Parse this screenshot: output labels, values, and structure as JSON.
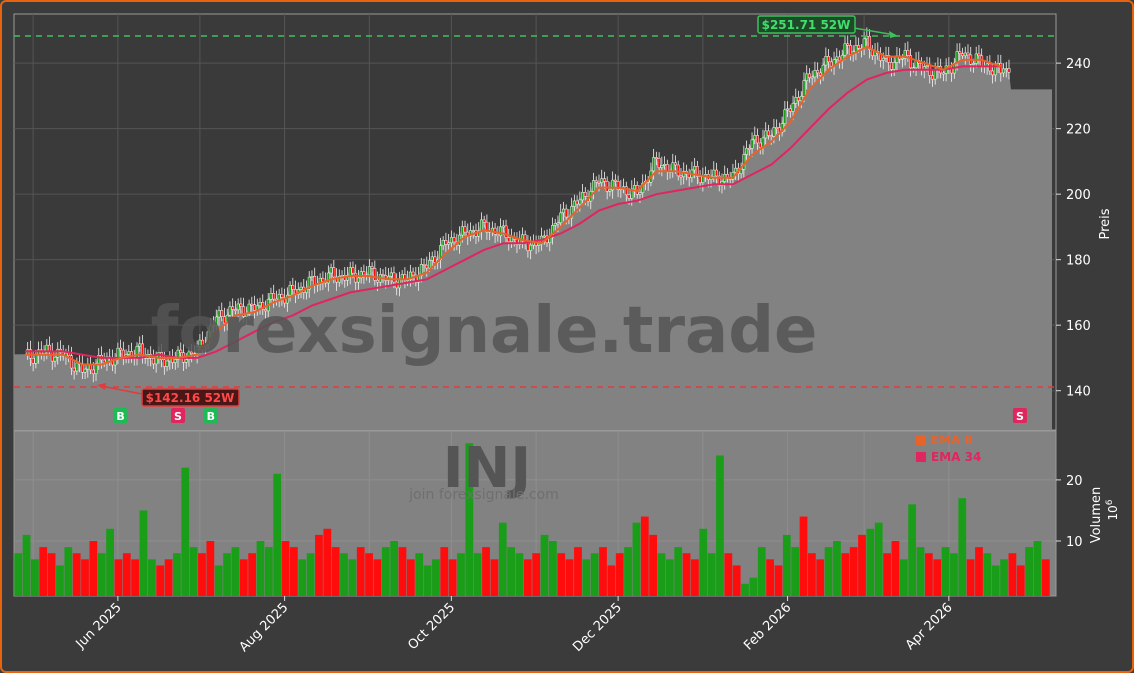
{
  "chart_data": [
    {
      "type": "candlestick",
      "panel": "price",
      "ylabel": "Preis",
      "ylim": [
        128,
        255
      ],
      "yticks": [
        140,
        160,
        180,
        200,
        220,
        240
      ],
      "xticks": [
        "Jun 2025",
        "Aug 2025",
        "Oct 2025",
        "Dec 2025",
        "Feb 2026",
        "Apr 2026"
      ],
      "grid": true,
      "close_approx": [
        {
          "date": "2025-04-28",
          "value": 150
        },
        {
          "date": "2025-05-05",
          "value": 152
        },
        {
          "date": "2025-05-12",
          "value": 151
        },
        {
          "date": "2025-05-19",
          "value": 146
        },
        {
          "date": "2025-05-26",
          "value": 149
        },
        {
          "date": "2025-06-02",
          "value": 151
        },
        {
          "date": "2025-06-09",
          "value": 152
        },
        {
          "date": "2025-06-16",
          "value": 149
        },
        {
          "date": "2025-06-23",
          "value": 150
        },
        {
          "date": "2025-06-30",
          "value": 152
        },
        {
          "date": "2025-07-07",
          "value": 162
        },
        {
          "date": "2025-07-14",
          "value": 165
        },
        {
          "date": "2025-07-21",
          "value": 165
        },
        {
          "date": "2025-07-28",
          "value": 168
        },
        {
          "date": "2025-08-04",
          "value": 170
        },
        {
          "date": "2025-08-11",
          "value": 173
        },
        {
          "date": "2025-08-18",
          "value": 175
        },
        {
          "date": "2025-08-25",
          "value": 175
        },
        {
          "date": "2025-09-01",
          "value": 176
        },
        {
          "date": "2025-09-08",
          "value": 174
        },
        {
          "date": "2025-09-15",
          "value": 174
        },
        {
          "date": "2025-09-22",
          "value": 178
        },
        {
          "date": "2025-09-29",
          "value": 185
        },
        {
          "date": "2025-10-06",
          "value": 188
        },
        {
          "date": "2025-10-13",
          "value": 190
        },
        {
          "date": "2025-10-20",
          "value": 188
        },
        {
          "date": "2025-10-27",
          "value": 185
        },
        {
          "date": "2025-11-03",
          "value": 185
        },
        {
          "date": "2025-11-10",
          "value": 193
        },
        {
          "date": "2025-11-17",
          "value": 198
        },
        {
          "date": "2025-11-24",
          "value": 204
        },
        {
          "date": "2025-12-01",
          "value": 202
        },
        {
          "date": "2025-12-08",
          "value": 200
        },
        {
          "date": "2025-12-15",
          "value": 210
        },
        {
          "date": "2025-12-22",
          "value": 207
        },
        {
          "date": "2025-12-29",
          "value": 206
        },
        {
          "date": "2026-01-05",
          "value": 205
        },
        {
          "date": "2026-01-12",
          "value": 205
        },
        {
          "date": "2026-01-19",
          "value": 216
        },
        {
          "date": "2026-01-26",
          "value": 218
        },
        {
          "date": "2026-02-02",
          "value": 226
        },
        {
          "date": "2026-02-09",
          "value": 236
        },
        {
          "date": "2026-02-16",
          "value": 240
        },
        {
          "date": "2026-02-23",
          "value": 244
        },
        {
          "date": "2026-03-02",
          "value": 246
        },
        {
          "date": "2026-03-09",
          "value": 240
        },
        {
          "date": "2026-03-16",
          "value": 242
        },
        {
          "date": "2026-03-23",
          "value": 238
        },
        {
          "date": "2026-03-30",
          "value": 237
        },
        {
          "date": "2026-04-06",
          "value": 243
        },
        {
          "date": "2026-04-13",
          "value": 240
        },
        {
          "date": "2026-04-20",
          "value": 237
        }
      ],
      "ema_fast_approx": [
        151,
        151,
        151,
        148,
        148,
        150,
        151,
        150,
        150,
        151,
        158,
        163,
        164,
        167,
        169,
        172,
        174,
        175,
        175,
        174,
        174,
        176,
        182,
        187,
        189,
        188,
        186,
        185,
        190,
        196,
        202,
        202,
        201,
        207,
        207,
        206,
        205,
        205,
        212,
        216,
        222,
        232,
        238,
        242,
        245,
        242,
        242,
        240,
        238,
        241,
        241,
        239
      ],
      "ema_slow_approx": [
        152,
        152,
        152,
        151,
        150,
        150,
        150,
        151,
        150,
        150,
        152,
        155,
        158,
        161,
        163,
        166,
        168,
        170,
        171,
        172,
        173,
        174,
        177,
        180,
        183,
        185,
        185,
        186,
        188,
        191,
        195,
        197,
        198,
        200,
        201,
        202,
        203,
        203,
        206,
        209,
        214,
        220,
        226,
        231,
        235,
        237,
        238,
        238,
        238,
        239,
        239,
        239
      ],
      "series": [
        {
          "name": "EMA 8",
          "color": "#e8632a"
        },
        {
          "name": "EMA 34",
          "color": "#e0255f"
        }
      ],
      "annotations": [
        {
          "text": "$251.71 52W",
          "value": 251.71,
          "date": "2026-02-28",
          "color": "#3fbf5c"
        },
        {
          "text": "$142.16 52W",
          "value": 142.16,
          "date": "2025-05-19",
          "color": "#e33b3b"
        }
      ],
      "signals": [
        {
          "label": "B",
          "date": "2025-06-02",
          "color": "#1fb955"
        },
        {
          "label": "S",
          "date": "2025-06-23",
          "color": "#e0255f"
        },
        {
          "label": "B",
          "date": "2025-07-05",
          "color": "#1fb955"
        },
        {
          "label": "S",
          "date": "2026-04-27",
          "color": "#e0255f"
        }
      ],
      "watermark": "forexsignale.trade"
    },
    {
      "type": "bar",
      "panel": "volume",
      "ylabel": "Volumen",
      "yunit": "10⁶",
      "ylim": [
        1,
        28
      ],
      "yticks": [
        10,
        20
      ],
      "colors": {
        "up": "#1a9e1a",
        "down": "#ff0d0d"
      },
      "volume_approx": [
        8,
        11,
        7,
        9,
        8,
        6,
        9,
        8,
        7,
        10,
        8,
        12,
        7,
        8,
        7,
        15,
        7,
        6,
        7,
        8,
        22,
        9,
        8,
        10,
        6,
        8,
        9,
        7,
        8,
        10,
        9,
        21,
        10,
        9,
        7,
        8,
        11,
        12,
        9,
        8,
        7,
        9,
        8,
        7,
        9,
        10,
        9,
        7,
        8,
        6,
        7,
        9,
        7,
        8,
        26,
        8,
        9,
        7,
        13,
        9,
        8,
        7,
        8,
        11,
        10,
        8,
        7,
        9,
        7,
        8,
        9,
        6,
        8,
        9,
        13,
        14,
        11,
        8,
        7,
        9,
        8,
        7,
        12,
        8,
        24,
        8,
        6,
        3,
        4,
        9,
        7,
        6,
        11,
        9,
        14,
        8,
        7,
        9,
        10,
        8,
        9,
        11,
        12,
        13,
        8,
        10,
        7,
        16,
        9,
        8,
        7,
        9,
        8,
        17,
        7,
        9,
        8,
        6,
        7,
        8,
        6,
        9,
        10,
        7
      ]
    }
  ],
  "legend": [
    {
      "label": "EMA 8",
      "color": "#e8632a"
    },
    {
      "label": "EMA 34",
      "color": "#e0255f"
    }
  ],
  "labels": {
    "price_axis": "Preis",
    "volume_axis": "Volumen",
    "volume_unit": "10",
    "volume_unit_exp": "6",
    "high_label": "$251.71 52W",
    "low_label": "$142.16 52W",
    "watermark_site": "forexsignale.trade",
    "watermark_ticker": "INJ",
    "watermark_join": "join forexsignale.com"
  }
}
